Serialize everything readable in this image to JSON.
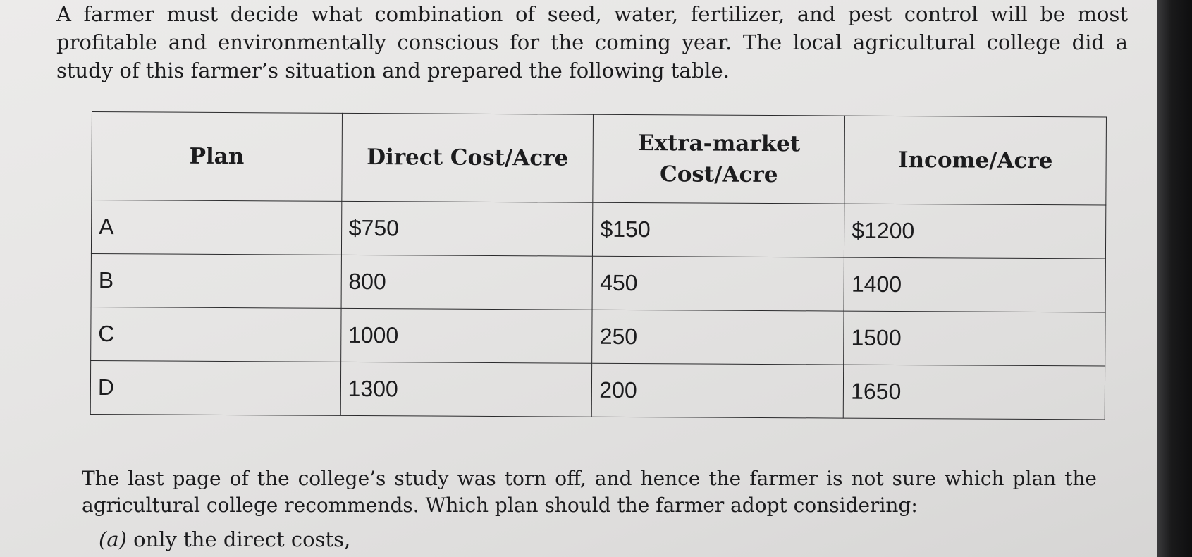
{
  "intro_text": "A farmer must decide what combination of seed, water, fertilizer, and pest control will be most profitable and environmentally conscious for the coming year. The local agricultural college did a study of this farmer’s situation and prepared the following table.",
  "table": {
    "headers": [
      "Plan",
      "Direct Cost/Acre",
      "Extra-market Cost/Acre",
      "Income/Acre"
    ],
    "rows": [
      [
        "A",
        "$750",
        "$150",
        "$1200"
      ],
      [
        "B",
        "800",
        "450",
        "1400"
      ],
      [
        "C",
        "1000",
        "250",
        "1500"
      ],
      [
        "D",
        "1300",
        "200",
        "1650"
      ]
    ]
  },
  "outro_text": "The last page of the college’s study was torn off, and hence the farmer is not sure which plan the agricultural college recommends. Which plan should the farmer adopt considering:",
  "part_a": {
    "letter": "(a)",
    "text": "only the direct costs,"
  }
}
